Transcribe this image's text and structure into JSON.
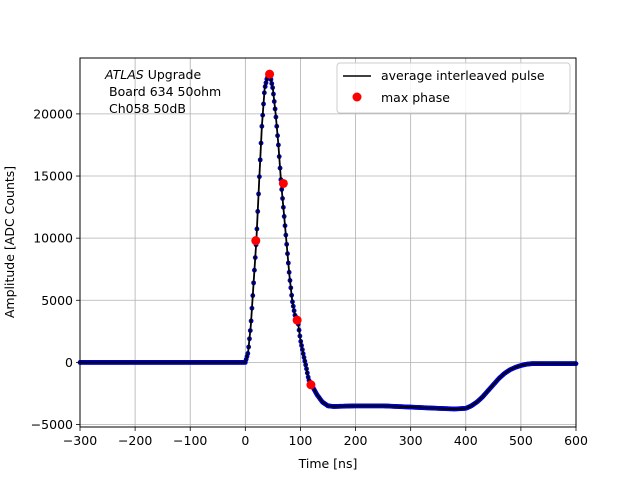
{
  "chart_data": {
    "type": "line",
    "xlabel": "Time [ns]",
    "ylabel": "Amplitude [ADC Counts]",
    "xlim": [
      -300,
      600
    ],
    "ylim": [
      -5200,
      24500
    ],
    "xticks": [
      -300,
      -200,
      -100,
      0,
      100,
      200,
      300,
      400,
      500,
      600
    ],
    "xtick_labels": [
      "−300",
      "−200",
      "−100",
      "0",
      "100",
      "200",
      "300",
      "400",
      "500",
      "600"
    ],
    "yticks": [
      -5000,
      0,
      5000,
      10000,
      15000,
      20000
    ],
    "ytick_labels": [
      "−5000",
      "0",
      "5000",
      "10000",
      "15000",
      "20000"
    ],
    "grid": true,
    "legend_position": "top-right",
    "annotation": {
      "line1_italic": "ATLAS",
      "line1_rest": " Upgrade",
      "line2": "Board 634 50ohm",
      "line3": "Ch058 50dB"
    },
    "series": [
      {
        "name": "average interleaved pulse",
        "kind": "line",
        "color": "#000000",
        "x": [
          -300,
          -200,
          -100,
          0,
          5,
          10,
          15,
          20,
          25,
          30,
          35,
          40,
          45,
          50,
          55,
          60,
          65,
          70,
          75,
          80,
          85,
          90,
          95,
          100,
          105,
          110,
          115,
          120,
          130,
          140,
          150,
          160,
          200,
          250,
          300,
          350,
          380,
          400,
          410,
          420,
          430,
          440,
          450,
          460,
          470,
          480,
          490,
          500,
          510,
          520,
          550,
          600
        ],
        "y": [
          0,
          0,
          0,
          0,
          800,
          3000,
          6400,
          9800,
          14500,
          19000,
          22000,
          23000,
          23100,
          22000,
          20000,
          17500,
          14400,
          12000,
          9500,
          7000,
          5000,
          3800,
          3400,
          1800,
          700,
          -300,
          -1400,
          -1800,
          -2600,
          -3200,
          -3500,
          -3550,
          -3500,
          -3500,
          -3600,
          -3700,
          -3750,
          -3700,
          -3500,
          -3200,
          -2800,
          -2300,
          -1800,
          -1300,
          -900,
          -600,
          -400,
          -250,
          -150,
          -100,
          -100,
          -100
        ],
        "marker_color": "#0000cc"
      },
      {
        "name": "max phase",
        "kind": "scatter",
        "color": "#ff0000",
        "x": [
          19,
          44,
          69,
          94,
          119
        ],
        "y": [
          9800,
          23200,
          14400,
          3400,
          -1800
        ]
      }
    ]
  }
}
